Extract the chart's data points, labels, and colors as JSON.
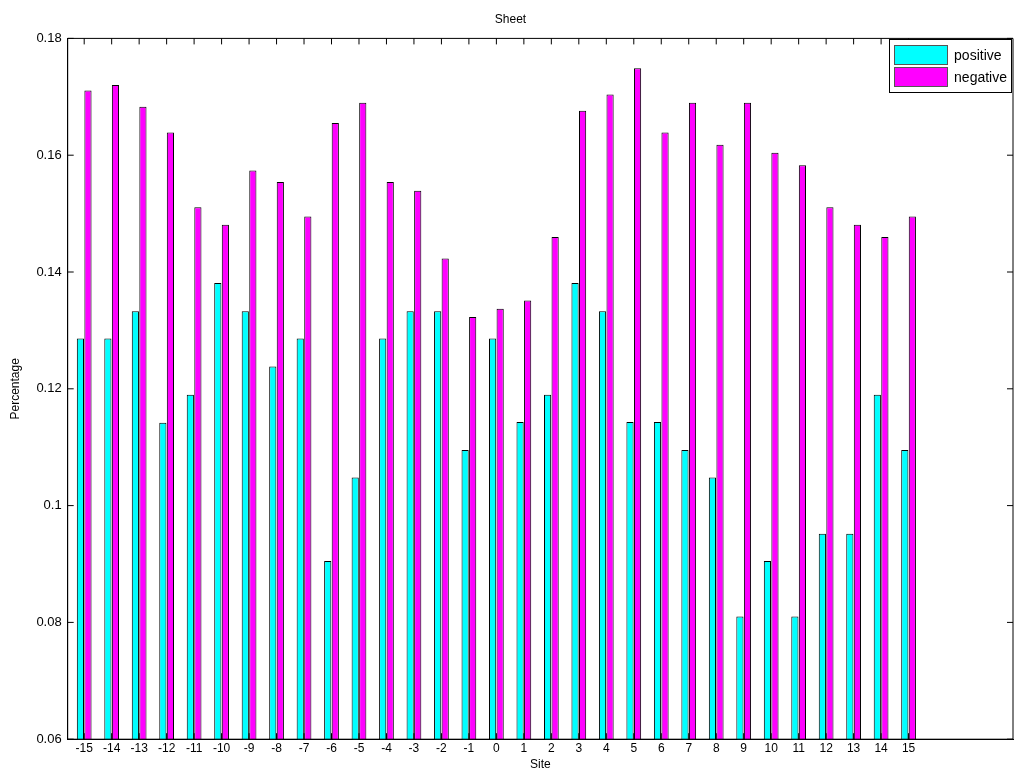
{
  "chart_data": {
    "type": "bar",
    "title": "Sheet",
    "xlabel": "Site",
    "ylabel": "Percentage",
    "x": [
      -15,
      -14,
      -13,
      -12,
      -11,
      -10,
      -9,
      -8,
      -7,
      -6,
      -5,
      -4,
      -3,
      -2,
      -1,
      0,
      1,
      2,
      3,
      4,
      5,
      6,
      7,
      8,
      9,
      10,
      11,
      12,
      13,
      14,
      15
    ],
    "xlim": [
      -15.6,
      18.8
    ],
    "xticks": [
      -15,
      -14,
      -13,
      -12,
      -11,
      -10,
      -9,
      -8,
      -7,
      -6,
      -5,
      -4,
      -3,
      -2,
      -1,
      0,
      1,
      2,
      3,
      4,
      5,
      6,
      7,
      8,
      9,
      10,
      11,
      12,
      13,
      14,
      15
    ],
    "ylim": [
      0.06,
      0.18
    ],
    "yticks": [
      0.06,
      0.08,
      0.1,
      0.12,
      0.14,
      0.16,
      0.18
    ],
    "series": [
      {
        "name": "positive",
        "color": "#00ffff",
        "values": [
          0.1286,
          0.1286,
          0.1333,
          0.1142,
          0.119,
          0.1381,
          0.1333,
          0.1238,
          0.1286,
          0.0905,
          0.1048,
          0.1286,
          0.1333,
          0.1333,
          0.1095,
          0.1286,
          0.1143,
          0.119,
          0.1381,
          0.1333,
          0.1143,
          0.1143,
          0.1095,
          0.1048,
          0.081,
          0.0905,
          0.081,
          0.0952,
          0.0952,
          0.119,
          0.1095
        ]
      },
      {
        "name": "negative",
        "color": "#ff00ff",
        "values": [
          0.1711,
          0.172,
          0.1683,
          0.1639,
          0.1511,
          0.1481,
          0.1574,
          0.1554,
          0.1495,
          0.1655,
          0.169,
          0.1554,
          0.1539,
          0.1423,
          0.1323,
          0.1337,
          0.1351,
          0.146,
          0.1676,
          0.1704,
          0.1749,
          0.1639,
          0.169,
          0.1618,
          0.169,
          0.1604,
          0.1583,
          0.1511,
          0.1481,
          0.146,
          0.1495
        ]
      }
    ],
    "legend": "top right",
    "grid": false
  }
}
